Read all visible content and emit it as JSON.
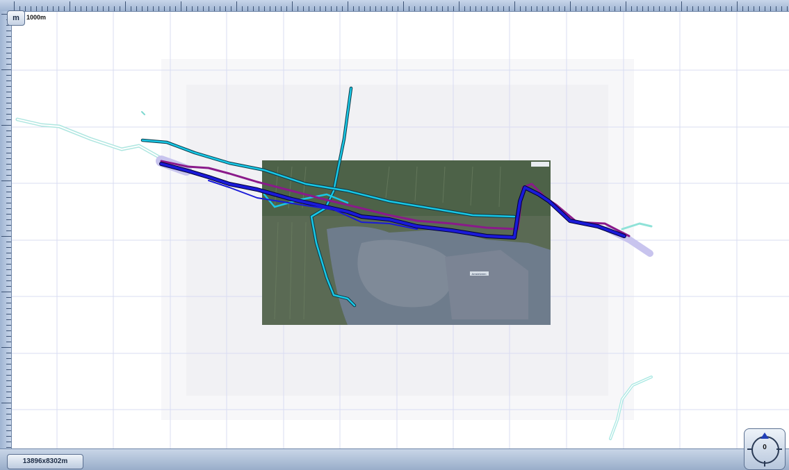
{
  "toolbar": {
    "unit_button_label": "m"
  },
  "scale": {
    "label": "1000m"
  },
  "status": {
    "extent_label": "13896x8302m"
  },
  "compass": {
    "heading": "0"
  },
  "map": {
    "background_color": "#ffffff",
    "grid_color": "#d9dcf2",
    "satellite_overlay": {
      "tiles": "aerial-photo",
      "label": "Amstelveen"
    },
    "routes": [
      {
        "name": "cyan-track",
        "color": "#19c8e6"
      },
      {
        "name": "blue-track",
        "color": "#1a1ad8"
      },
      {
        "name": "purple-track",
        "color": "#8a1a8a"
      },
      {
        "name": "pale-track",
        "color": "#a8e8e2"
      }
    ]
  },
  "icons": {
    "compass": "compass-icon",
    "north": "north-arrow-icon"
  }
}
